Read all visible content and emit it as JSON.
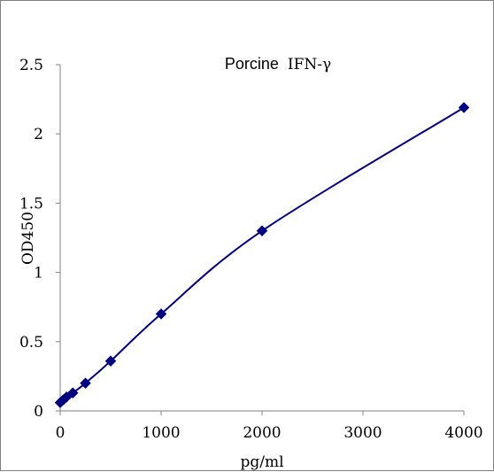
{
  "chart_data": {
    "type": "scatter",
    "title_prefix": "Porcine",
    "title_suffix": "IFN-γ",
    "xlabel": "pg/ml",
    "ylabel": "OD450",
    "xlim": [
      0,
      4000
    ],
    "ylim": [
      0,
      2.5
    ],
    "x_ticks": [
      0,
      1000,
      2000,
      3000,
      4000
    ],
    "x_tick_labels": [
      "0",
      "1000",
      "2000",
      "3000",
      "4000"
    ],
    "y_ticks": [
      0,
      0.5,
      1,
      1.5,
      2,
      2.5
    ],
    "y_tick_labels": [
      "0",
      "0.5",
      "1",
      "1.5",
      "2",
      "2.5"
    ],
    "grid": false,
    "legend": "none",
    "marker": "diamond",
    "trendline": "smooth",
    "series": [
      {
        "x": [
          0,
          31.25,
          62.5,
          125,
          250,
          500,
          1000,
          2000,
          4000
        ],
        "y": [
          0.06,
          0.08,
          0.1,
          0.13,
          0.2,
          0.36,
          0.7,
          1.3,
          2.19
        ]
      }
    ],
    "colors": {
      "series": "#000080",
      "axis": "#808080",
      "frame": "#7f7f7f"
    }
  }
}
